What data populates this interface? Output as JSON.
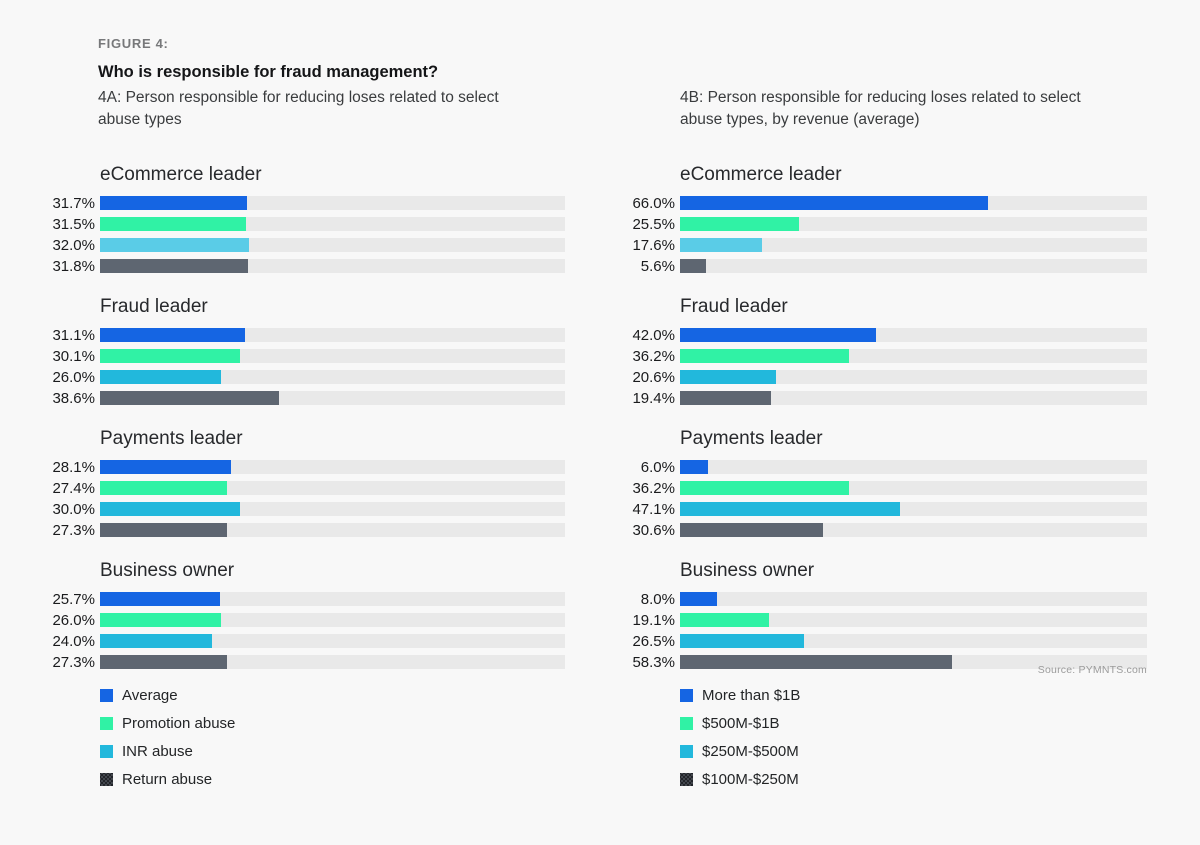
{
  "header": {
    "figure_label": "FIGURE 4:",
    "title": "Who is responsible for fraud management?"
  },
  "source": "Source: PYMNTS.com",
  "colors": {
    "page_bg": "#f8f8f8",
    "track": "#e9e9e9",
    "blue": "#1565e3",
    "green": "#30f2a5",
    "cyan": "#22b8dc",
    "cyan_light": "#5acce7",
    "slate": "#5e6671",
    "legend_dark_swatch": "#17191d"
  },
  "chart_data": [
    {
      "type": "bar",
      "orientation": "horizontal",
      "title": "4A: Person responsible for reducing loses related to select abuse types",
      "unit": "%",
      "xlim": [
        0,
        100
      ],
      "grid": false,
      "legend_position": "bottom-left",
      "categories": [
        "eCommerce leader",
        "Fraud leader",
        "Payments leader",
        "Business owner"
      ],
      "series": [
        {
          "name": "Average",
          "color": "#1565e3",
          "values": [
            31.7,
            31.1,
            28.1,
            25.7
          ]
        },
        {
          "name": "Promotion abuse",
          "color": "#30f2a5",
          "values": [
            31.5,
            30.1,
            27.4,
            26.0
          ]
        },
        {
          "name": "INR abuse",
          "color": "#22b8dc",
          "values": [
            32.0,
            26.0,
            30.0,
            24.0
          ],
          "value_colors": [
            "#5acce7",
            null,
            null,
            null
          ]
        },
        {
          "name": "Return abuse",
          "color": "#5e6671",
          "values": [
            31.8,
            38.6,
            27.3,
            27.3
          ],
          "swatch": "halftone"
        }
      ]
    },
    {
      "type": "bar",
      "orientation": "horizontal",
      "title": "4B: Person responsible for reducing loses related to select abuse types, by revenue (average)",
      "unit": "%",
      "xlim": [
        0,
        100
      ],
      "grid": false,
      "legend_position": "bottom-left",
      "categories": [
        "eCommerce leader",
        "Fraud leader",
        "Payments leader",
        "Business owner"
      ],
      "series": [
        {
          "name": "More than $1B",
          "color": "#1565e3",
          "values": [
            66.0,
            42.0,
            6.0,
            8.0
          ]
        },
        {
          "name": "$500M-$1B",
          "color": "#30f2a5",
          "values": [
            25.5,
            36.2,
            36.2,
            19.1
          ]
        },
        {
          "name": "$250M-$500M",
          "color": "#22b8dc",
          "values": [
            17.6,
            20.6,
            47.1,
            26.5
          ],
          "value_colors": [
            "#5acce7",
            null,
            null,
            null
          ]
        },
        {
          "name": "$100M-$250M",
          "color": "#5e6671",
          "values": [
            5.6,
            19.4,
            30.6,
            58.3
          ],
          "swatch": "halftone"
        }
      ]
    }
  ]
}
